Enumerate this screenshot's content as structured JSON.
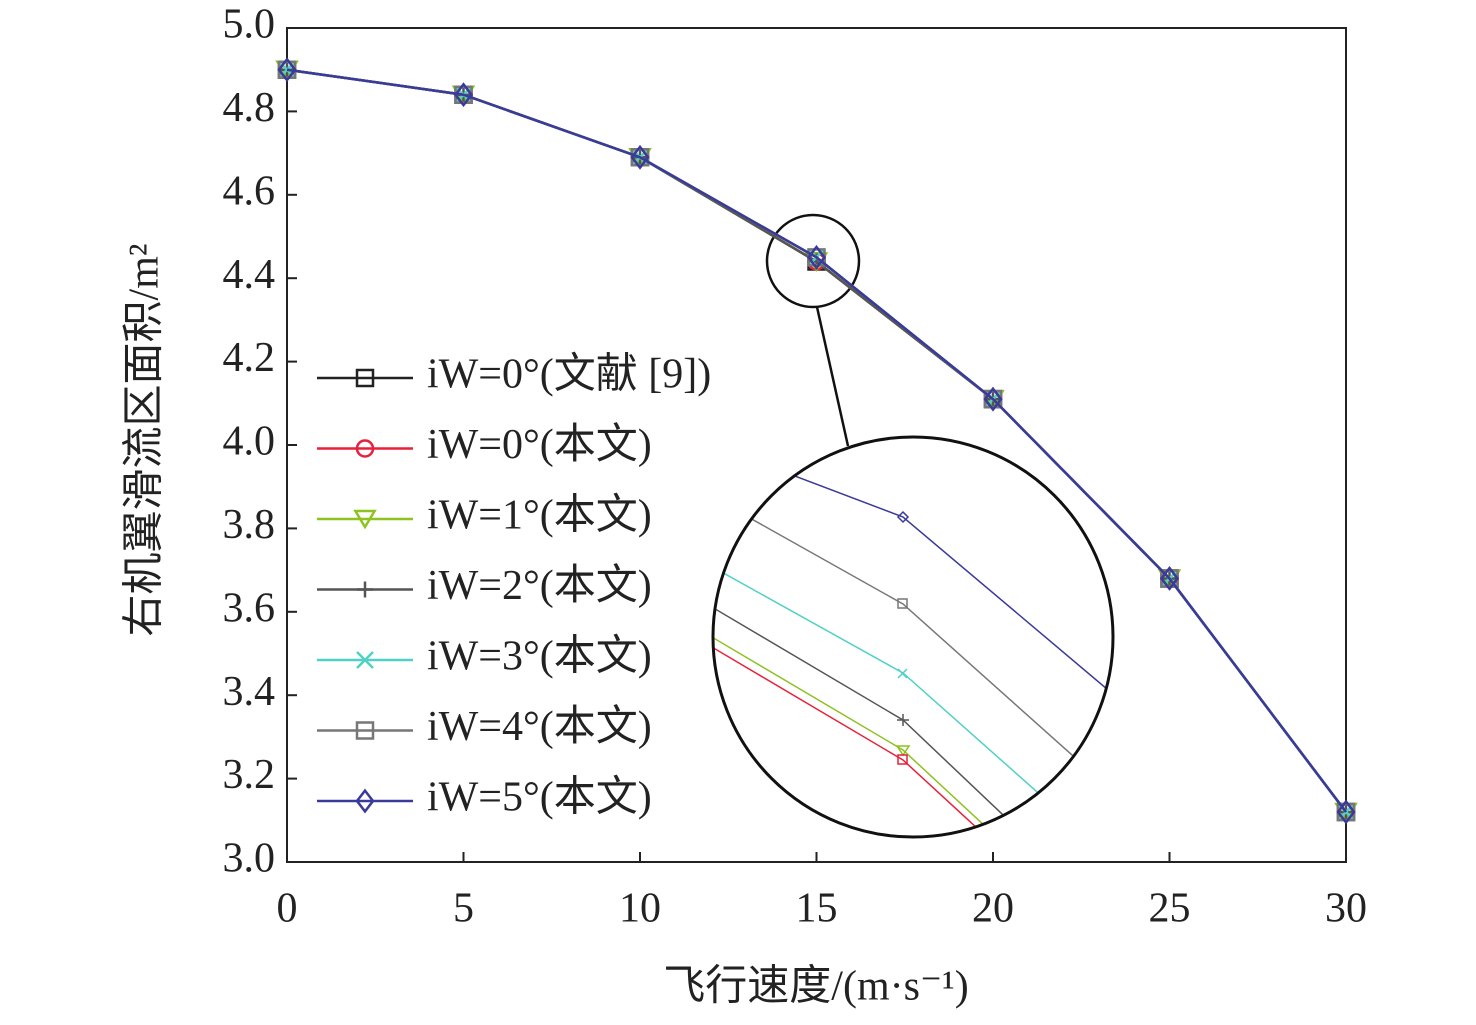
{
  "chart_data": {
    "type": "line",
    "x_label": "飞行速度/(m·s⁻¹)",
    "y_label": "右机翼滑流区面积/m²",
    "x": [
      0,
      5,
      10,
      15,
      20,
      25,
      30
    ],
    "xlim": [
      0,
      30
    ],
    "xticks": [
      0,
      5,
      10,
      15,
      20,
      25,
      30
    ],
    "ylim": [
      3,
      5
    ],
    "yticks": [
      {
        "value": 3,
        "label": "3.0"
      },
      3.2,
      3.4,
      3.6,
      3.8,
      {
        "value": 4,
        "label": "4.0"
      },
      4.2,
      4.4,
      4.6,
      4.8,
      {
        "value": 5,
        "label": "5.0"
      }
    ],
    "legend": "left",
    "series": [
      {
        "name": "iW=0°(文献 [9])",
        "color": "#222222",
        "marker": "square",
        "values": [
          4.9,
          4.84,
          4.69,
          4.44,
          4.11,
          3.68,
          3.12
        ]
      },
      {
        "name": "iW=0°(本文)",
        "color": "#e8203a",
        "marker": "circle",
        "values": [
          4.9,
          4.84,
          4.69,
          4.44,
          4.11,
          3.68,
          3.12
        ]
      },
      {
        "name": "iW=1°(本文)",
        "color": "#8dc21f",
        "marker": "triangle",
        "values": [
          4.9,
          4.84,
          4.69,
          4.44,
          4.11,
          3.68,
          3.12
        ]
      },
      {
        "name": "iW=2°(本文)",
        "color": "#555555",
        "marker": "plus",
        "values": [
          4.9,
          4.84,
          4.69,
          4.44,
          4.11,
          3.68,
          3.12
        ]
      },
      {
        "name": "iW=3°(本文)",
        "color": "#4fd1c5",
        "marker": "cross",
        "values": [
          4.9,
          4.84,
          4.69,
          4.45,
          4.11,
          3.68,
          3.12
        ]
      },
      {
        "name": "iW=4°(本文)",
        "color": "#777777",
        "marker": "square",
        "values": [
          4.9,
          4.84,
          4.69,
          4.45,
          4.11,
          3.68,
          3.12
        ]
      },
      {
        "name": "iW=5°(本文)",
        "color": "#3a3a9a",
        "marker": "diamond",
        "values": [
          4.9,
          4.84,
          4.69,
          4.45,
          4.11,
          3.68,
          3.12
        ]
      }
    ]
  }
}
